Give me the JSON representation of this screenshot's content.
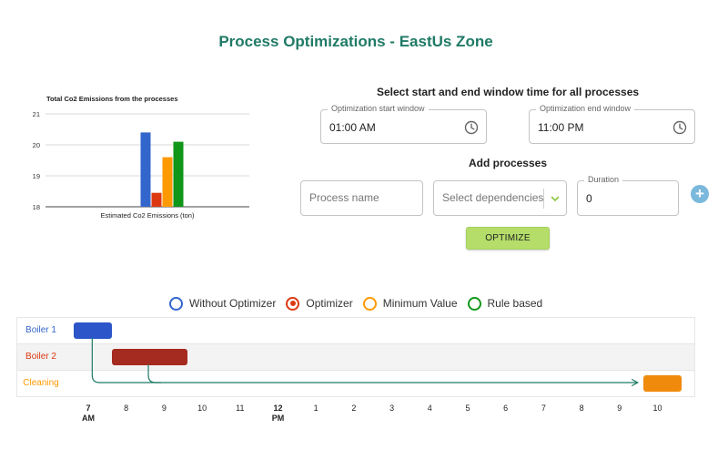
{
  "page_title": "Process Optimizations - EastUs Zone",
  "chart_data": {
    "type": "bar",
    "title": "Total Co2 Emissions from the processes",
    "xlabel": "Estimated Co2 Emissions (ton)",
    "ylabel": "",
    "ylim": [
      18,
      21
    ],
    "yticks": [
      18,
      19,
      20,
      21
    ],
    "grid": true,
    "series": [
      {
        "values": [
          20.4
        ],
        "color": "#3366cc"
      },
      {
        "values": [
          18.45
        ],
        "color": "#dc3912"
      },
      {
        "values": [
          19.6
        ],
        "color": "#ff9900"
      },
      {
        "values": [
          20.1
        ],
        "color": "#109618"
      }
    ]
  },
  "window_section": {
    "title": "Select start and end window time for all processes",
    "start": {
      "label": "Optimization start window",
      "value": "01:00 AM",
      "icon": "clock-icon"
    },
    "end": {
      "label": "Optimization end window",
      "value": "11:00 PM",
      "icon": "clock-icon"
    }
  },
  "add_section": {
    "title": "Add processes",
    "process_name": {
      "placeholder": "Process name"
    },
    "dependencies": {
      "placeholder": "Select dependencies",
      "icon": "chevron-down-icon"
    },
    "duration": {
      "label": "Duration",
      "value": "0"
    },
    "add_icon": "plus-icon"
  },
  "optimize_button": "OPTIMIZE",
  "legend": [
    {
      "label": "Without Optimizer",
      "color": "#3366cc",
      "selected": false
    },
    {
      "label": "Optimizer",
      "color": "#dc3912",
      "selected": true
    },
    {
      "label": "Minimum Value",
      "color": "#ff9900",
      "selected": false
    },
    {
      "label": "Rule based",
      "color": "#109618",
      "selected": false
    }
  ],
  "gantt": {
    "rows": [
      {
        "label": "Boiler 1",
        "color": "#3366cc"
      },
      {
        "label": "Boiler 2",
        "color": "#dc3912"
      },
      {
        "label": "Cleaning",
        "color": "#ff9900"
      }
    ],
    "tasks": [
      {
        "row": 0,
        "start_hour": 6.6,
        "end_hour": 7.6,
        "color": "#2b55c8"
      },
      {
        "row": 1,
        "start_hour": 7.6,
        "end_hour": 9.6,
        "color": "#a52a1f"
      },
      {
        "row": 2,
        "start_hour": 21.6,
        "end_hour": 22.6,
        "color": "#f08a0c"
      }
    ],
    "dependency_color": "#1f7a66",
    "axis": [
      {
        "label": "7",
        "sub": "AM",
        "bold": true
      },
      {
        "label": "8"
      },
      {
        "label": "9"
      },
      {
        "label": "10"
      },
      {
        "label": "11"
      },
      {
        "label": "12",
        "sub": "PM",
        "bold": true
      },
      {
        "label": "1"
      },
      {
        "label": "2"
      },
      {
        "label": "3"
      },
      {
        "label": "4"
      },
      {
        "label": "5"
      },
      {
        "label": "6"
      },
      {
        "label": "7"
      },
      {
        "label": "8"
      },
      {
        "label": "9"
      },
      {
        "label": "10"
      }
    ]
  }
}
